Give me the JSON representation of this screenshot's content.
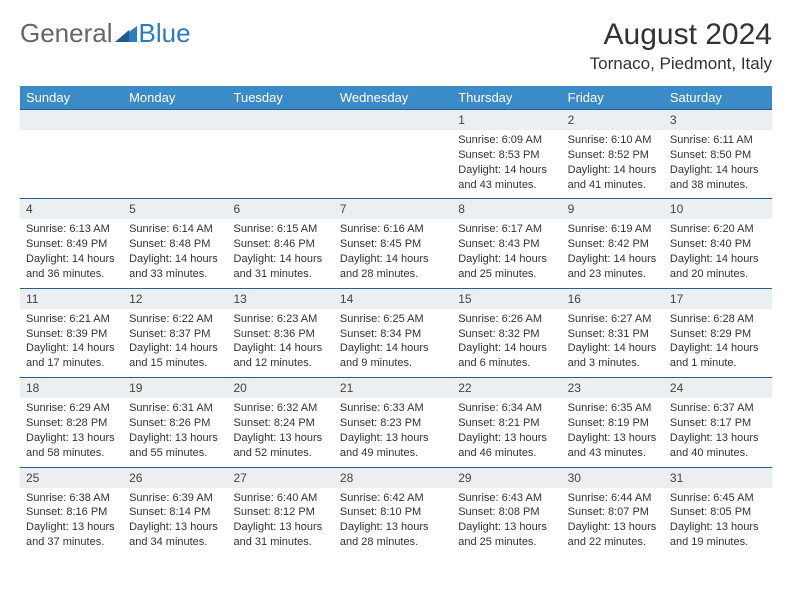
{
  "brand": {
    "part1": "General",
    "part2": "Blue"
  },
  "title": "August 2024",
  "location": "Tornaco, Piedmont, Italy",
  "colors": {
    "header_bg": "#3b8bc9",
    "daynum_bg": "#eceff1",
    "border": "#2b5f8a",
    "brand_blue": "#2b7bbf"
  },
  "day_names": [
    "Sunday",
    "Monday",
    "Tuesday",
    "Wednesday",
    "Thursday",
    "Friday",
    "Saturday"
  ],
  "weeks": [
    [
      {
        "n": "",
        "sr": "",
        "ss": "",
        "dl": ""
      },
      {
        "n": "",
        "sr": "",
        "ss": "",
        "dl": ""
      },
      {
        "n": "",
        "sr": "",
        "ss": "",
        "dl": ""
      },
      {
        "n": "",
        "sr": "",
        "ss": "",
        "dl": ""
      },
      {
        "n": "1",
        "sr": "Sunrise: 6:09 AM",
        "ss": "Sunset: 8:53 PM",
        "dl": "Daylight: 14 hours and 43 minutes."
      },
      {
        "n": "2",
        "sr": "Sunrise: 6:10 AM",
        "ss": "Sunset: 8:52 PM",
        "dl": "Daylight: 14 hours and 41 minutes."
      },
      {
        "n": "3",
        "sr": "Sunrise: 6:11 AM",
        "ss": "Sunset: 8:50 PM",
        "dl": "Daylight: 14 hours and 38 minutes."
      }
    ],
    [
      {
        "n": "4",
        "sr": "Sunrise: 6:13 AM",
        "ss": "Sunset: 8:49 PM",
        "dl": "Daylight: 14 hours and 36 minutes."
      },
      {
        "n": "5",
        "sr": "Sunrise: 6:14 AM",
        "ss": "Sunset: 8:48 PM",
        "dl": "Daylight: 14 hours and 33 minutes."
      },
      {
        "n": "6",
        "sr": "Sunrise: 6:15 AM",
        "ss": "Sunset: 8:46 PM",
        "dl": "Daylight: 14 hours and 31 minutes."
      },
      {
        "n": "7",
        "sr": "Sunrise: 6:16 AM",
        "ss": "Sunset: 8:45 PM",
        "dl": "Daylight: 14 hours and 28 minutes."
      },
      {
        "n": "8",
        "sr": "Sunrise: 6:17 AM",
        "ss": "Sunset: 8:43 PM",
        "dl": "Daylight: 14 hours and 25 minutes."
      },
      {
        "n": "9",
        "sr": "Sunrise: 6:19 AM",
        "ss": "Sunset: 8:42 PM",
        "dl": "Daylight: 14 hours and 23 minutes."
      },
      {
        "n": "10",
        "sr": "Sunrise: 6:20 AM",
        "ss": "Sunset: 8:40 PM",
        "dl": "Daylight: 14 hours and 20 minutes."
      }
    ],
    [
      {
        "n": "11",
        "sr": "Sunrise: 6:21 AM",
        "ss": "Sunset: 8:39 PM",
        "dl": "Daylight: 14 hours and 17 minutes."
      },
      {
        "n": "12",
        "sr": "Sunrise: 6:22 AM",
        "ss": "Sunset: 8:37 PM",
        "dl": "Daylight: 14 hours and 15 minutes."
      },
      {
        "n": "13",
        "sr": "Sunrise: 6:23 AM",
        "ss": "Sunset: 8:36 PM",
        "dl": "Daylight: 14 hours and 12 minutes."
      },
      {
        "n": "14",
        "sr": "Sunrise: 6:25 AM",
        "ss": "Sunset: 8:34 PM",
        "dl": "Daylight: 14 hours and 9 minutes."
      },
      {
        "n": "15",
        "sr": "Sunrise: 6:26 AM",
        "ss": "Sunset: 8:32 PM",
        "dl": "Daylight: 14 hours and 6 minutes."
      },
      {
        "n": "16",
        "sr": "Sunrise: 6:27 AM",
        "ss": "Sunset: 8:31 PM",
        "dl": "Daylight: 14 hours and 3 minutes."
      },
      {
        "n": "17",
        "sr": "Sunrise: 6:28 AM",
        "ss": "Sunset: 8:29 PM",
        "dl": "Daylight: 14 hours and 1 minute."
      }
    ],
    [
      {
        "n": "18",
        "sr": "Sunrise: 6:29 AM",
        "ss": "Sunset: 8:28 PM",
        "dl": "Daylight: 13 hours and 58 minutes."
      },
      {
        "n": "19",
        "sr": "Sunrise: 6:31 AM",
        "ss": "Sunset: 8:26 PM",
        "dl": "Daylight: 13 hours and 55 minutes."
      },
      {
        "n": "20",
        "sr": "Sunrise: 6:32 AM",
        "ss": "Sunset: 8:24 PM",
        "dl": "Daylight: 13 hours and 52 minutes."
      },
      {
        "n": "21",
        "sr": "Sunrise: 6:33 AM",
        "ss": "Sunset: 8:23 PM",
        "dl": "Daylight: 13 hours and 49 minutes."
      },
      {
        "n": "22",
        "sr": "Sunrise: 6:34 AM",
        "ss": "Sunset: 8:21 PM",
        "dl": "Daylight: 13 hours and 46 minutes."
      },
      {
        "n": "23",
        "sr": "Sunrise: 6:35 AM",
        "ss": "Sunset: 8:19 PM",
        "dl": "Daylight: 13 hours and 43 minutes."
      },
      {
        "n": "24",
        "sr": "Sunrise: 6:37 AM",
        "ss": "Sunset: 8:17 PM",
        "dl": "Daylight: 13 hours and 40 minutes."
      }
    ],
    [
      {
        "n": "25",
        "sr": "Sunrise: 6:38 AM",
        "ss": "Sunset: 8:16 PM",
        "dl": "Daylight: 13 hours and 37 minutes."
      },
      {
        "n": "26",
        "sr": "Sunrise: 6:39 AM",
        "ss": "Sunset: 8:14 PM",
        "dl": "Daylight: 13 hours and 34 minutes."
      },
      {
        "n": "27",
        "sr": "Sunrise: 6:40 AM",
        "ss": "Sunset: 8:12 PM",
        "dl": "Daylight: 13 hours and 31 minutes."
      },
      {
        "n": "28",
        "sr": "Sunrise: 6:42 AM",
        "ss": "Sunset: 8:10 PM",
        "dl": "Daylight: 13 hours and 28 minutes."
      },
      {
        "n": "29",
        "sr": "Sunrise: 6:43 AM",
        "ss": "Sunset: 8:08 PM",
        "dl": "Daylight: 13 hours and 25 minutes."
      },
      {
        "n": "30",
        "sr": "Sunrise: 6:44 AM",
        "ss": "Sunset: 8:07 PM",
        "dl": "Daylight: 13 hours and 22 minutes."
      },
      {
        "n": "31",
        "sr": "Sunrise: 6:45 AM",
        "ss": "Sunset: 8:05 PM",
        "dl": "Daylight: 13 hours and 19 minutes."
      }
    ]
  ]
}
